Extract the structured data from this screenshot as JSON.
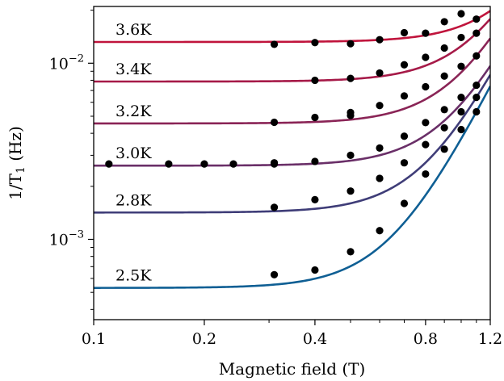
{
  "chart_data": {
    "type": "scatter",
    "xlabel": "Magnetic field (T)",
    "ylabel": "1/T",
    "ylabel_subscript": "1",
    "ylabel_unit": " (Hz)",
    "xscale": "log",
    "yscale": "log",
    "xlim": [
      0.1,
      1.2
    ],
    "ylim": [
      0.00035,
      0.021
    ],
    "x_ticks": [
      {
        "value": 0.1,
        "label": "0.1"
      },
      {
        "value": 0.2,
        "label": "0.2"
      },
      {
        "value": 0.4,
        "label": "0.4"
      },
      {
        "value": 0.8,
        "label": "0.8"
      },
      {
        "value": 1.2,
        "label": "1.2"
      }
    ],
    "y_ticks": [
      {
        "value": 0.001,
        "base": "10",
        "exp": "−3"
      },
      {
        "value": 0.01,
        "base": "10",
        "exp": "−2"
      }
    ],
    "grid": false,
    "legend": "none",
    "series": [
      {
        "label": "3.6K",
        "color": "#c0143c",
        "baseline": 0.0132,
        "points": [
          [
            0.31,
            0.0128
          ],
          [
            0.4,
            0.0131
          ],
          [
            0.5,
            0.0129
          ],
          [
            0.6,
            0.0136
          ],
          [
            0.7,
            0.0149
          ],
          [
            0.8,
            0.0148
          ],
          [
            0.9,
            0.0172
          ],
          [
            1.0,
            0.0191
          ],
          [
            1.1,
            0.0178
          ]
        ]
      },
      {
        "label": "3.4K",
        "color": "#a61a48",
        "baseline": 0.00787,
        "points": [
          [
            0.4,
            0.008
          ],
          [
            0.5,
            0.0082
          ],
          [
            0.6,
            0.0088
          ],
          [
            0.7,
            0.0098
          ],
          [
            0.8,
            0.0108
          ],
          [
            0.9,
            0.0122
          ],
          [
            1.0,
            0.014
          ],
          [
            1.1,
            0.0148
          ]
        ]
      },
      {
        "label": "3.2K",
        "color": "#8a2456",
        "baseline": 0.00455,
        "points": [
          [
            0.31,
            0.00462
          ],
          [
            0.4,
            0.00492
          ],
          [
            0.5,
            0.00505
          ],
          [
            0.5,
            0.00525
          ],
          [
            0.6,
            0.00575
          ],
          [
            0.7,
            0.00652
          ],
          [
            0.8,
            0.00735
          ],
          [
            0.9,
            0.00845
          ],
          [
            1.0,
            0.0096
          ],
          [
            1.1,
            0.011
          ]
        ]
      },
      {
        "label": "3.0K",
        "color": "#6a2f68",
        "baseline": 0.00262,
        "points": [
          [
            0.11,
            0.00268
          ],
          [
            0.16,
            0.00268
          ],
          [
            0.2,
            0.00268
          ],
          [
            0.24,
            0.00268
          ],
          [
            0.31,
            0.00272
          ],
          [
            0.31,
            0.00268
          ],
          [
            0.4,
            0.00277
          ],
          [
            0.5,
            0.003
          ],
          [
            0.6,
            0.0033
          ],
          [
            0.7,
            0.00385
          ],
          [
            0.8,
            0.0046
          ],
          [
            0.9,
            0.00545
          ],
          [
            1.0,
            0.0064
          ],
          [
            1.1,
            0.0075
          ]
        ]
      },
      {
        "label": "2.8K",
        "color": "#3f3d78",
        "baseline": 0.00142,
        "points": [
          [
            0.31,
            0.00152
          ],
          [
            0.4,
            0.00168
          ],
          [
            0.5,
            0.00188
          ],
          [
            0.6,
            0.00222
          ],
          [
            0.7,
            0.00272
          ],
          [
            0.8,
            0.00345
          ],
          [
            0.9,
            0.0043
          ],
          [
            1.0,
            0.0053
          ],
          [
            1.1,
            0.0064
          ]
        ]
      },
      {
        "label": "2.5K",
        "color": "#0f5f94",
        "baseline": 0.00053,
        "points": [
          [
            0.31,
            0.00063
          ],
          [
            0.4,
            0.00067
          ],
          [
            0.5,
            0.00085
          ],
          [
            0.6,
            0.00112
          ],
          [
            0.7,
            0.0016
          ],
          [
            0.8,
            0.00235
          ],
          [
            0.9,
            0.00325
          ],
          [
            1.0,
            0.0042
          ],
          [
            1.1,
            0.0053
          ]
        ]
      }
    ]
  }
}
